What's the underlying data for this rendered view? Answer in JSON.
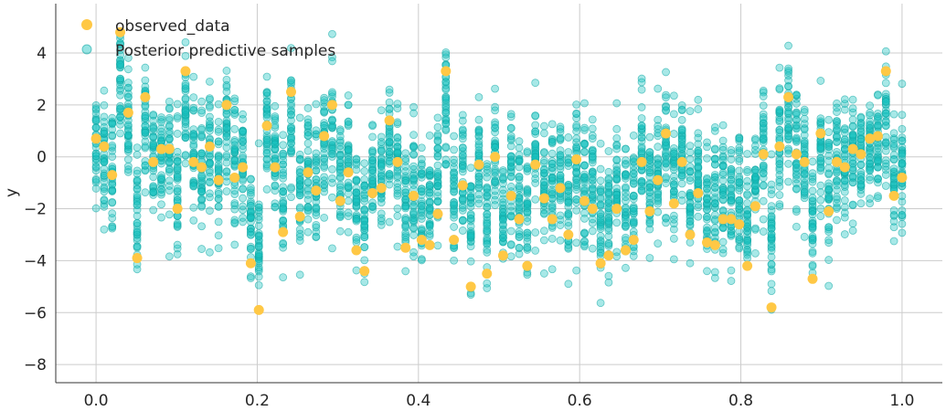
{
  "chart_data": {
    "type": "scatter",
    "title": "",
    "xlabel": "",
    "ylabel": "y",
    "xlim": [
      -0.05,
      1.05
    ],
    "ylim": [
      -8.7,
      5.9
    ],
    "x_ticks": [
      0.0,
      0.2,
      0.4,
      0.6,
      0.8,
      1.0
    ],
    "x_tick_labels": [
      "0.0",
      "0.2",
      "0.4",
      "0.6",
      "0.8",
      "1.0"
    ],
    "y_ticks": [
      4,
      2,
      0,
      -2,
      -4,
      -6,
      -8
    ],
    "y_tick_labels": [
      "4",
      "2",
      "0",
      "−2",
      "−4",
      "−6",
      "−8"
    ],
    "grid": true,
    "legend": {
      "position": "top-left",
      "entries": [
        {
          "label": "observed_data",
          "color": "#ffc845"
        },
        {
          "label": "Posterior predictive samples",
          "color": "#17c3c0"
        }
      ]
    },
    "colors": {
      "observed": "#ffc845",
      "posterior": "#17c3c0",
      "posterior_edge": "#12a8a5"
    },
    "posterior_samples_per_point": 36,
    "series": [
      {
        "name": "observed_data",
        "points": [
          [
            0.0,
            0.7
          ],
          [
            0.01,
            0.4
          ],
          [
            0.02,
            -0.7
          ],
          [
            0.03,
            4.8
          ],
          [
            0.04,
            1.7
          ],
          [
            0.051,
            -3.9
          ],
          [
            0.061,
            2.3
          ],
          [
            0.071,
            -0.2
          ],
          [
            0.081,
            0.3
          ],
          [
            0.091,
            0.3
          ],
          [
            0.101,
            -2.0
          ],
          [
            0.111,
            3.3
          ],
          [
            0.121,
            -0.2
          ],
          [
            0.131,
            -0.4
          ],
          [
            0.141,
            0.4
          ],
          [
            0.152,
            -0.9
          ],
          [
            0.162,
            2.0
          ],
          [
            0.172,
            -0.8
          ],
          [
            0.182,
            -0.4
          ],
          [
            0.192,
            -4.1
          ],
          [
            0.202,
            -5.9
          ],
          [
            0.212,
            1.2
          ],
          [
            0.222,
            -0.4
          ],
          [
            0.232,
            -2.9
          ],
          [
            0.242,
            2.5
          ],
          [
            0.253,
            -2.3
          ],
          [
            0.263,
            -0.6
          ],
          [
            0.273,
            -1.3
          ],
          [
            0.283,
            0.8
          ],
          [
            0.293,
            2.0
          ],
          [
            0.303,
            -1.7
          ],
          [
            0.313,
            -0.6
          ],
          [
            0.323,
            -3.6
          ],
          [
            0.333,
            -4.4
          ],
          [
            0.343,
            -1.4
          ],
          [
            0.354,
            -1.2
          ],
          [
            0.364,
            1.4
          ],
          [
            0.374,
            -0.2
          ],
          [
            0.384,
            -3.5
          ],
          [
            0.394,
            -1.5
          ],
          [
            0.404,
            -3.2
          ],
          [
            0.414,
            -3.4
          ],
          [
            0.424,
            -2.2
          ],
          [
            0.434,
            3.3
          ],
          [
            0.444,
            -3.2
          ],
          [
            0.455,
            -1.1
          ],
          [
            0.465,
            -5.0
          ],
          [
            0.475,
            -0.3
          ],
          [
            0.485,
            -4.5
          ],
          [
            0.495,
            0.0
          ],
          [
            0.505,
            -3.8
          ],
          [
            0.515,
            -1.5
          ],
          [
            0.525,
            -2.4
          ],
          [
            0.535,
            -4.2
          ],
          [
            0.545,
            -0.3
          ],
          [
            0.556,
            -1.6
          ],
          [
            0.566,
            -2.4
          ],
          [
            0.576,
            -1.2
          ],
          [
            0.586,
            -3.0
          ],
          [
            0.596,
            -0.1
          ],
          [
            0.606,
            -1.7
          ],
          [
            0.616,
            -2.0
          ],
          [
            0.626,
            -4.1
          ],
          [
            0.636,
            -3.8
          ],
          [
            0.646,
            -2.0
          ],
          [
            0.657,
            -3.6
          ],
          [
            0.667,
            -3.2
          ],
          [
            0.677,
            -0.2
          ],
          [
            0.687,
            -2.1
          ],
          [
            0.697,
            -0.9
          ],
          [
            0.707,
            0.9
          ],
          [
            0.717,
            -1.8
          ],
          [
            0.727,
            -0.2
          ],
          [
            0.737,
            -3.0
          ],
          [
            0.747,
            -1.4
          ],
          [
            0.758,
            -3.3
          ],
          [
            0.768,
            -3.4
          ],
          [
            0.778,
            -2.4
          ],
          [
            0.788,
            -2.4
          ],
          [
            0.798,
            -2.6
          ],
          [
            0.808,
            -4.2
          ],
          [
            0.818,
            -1.9
          ],
          [
            0.828,
            0.1
          ],
          [
            0.838,
            -5.8
          ],
          [
            0.848,
            0.4
          ],
          [
            0.859,
            2.3
          ],
          [
            0.869,
            0.1
          ],
          [
            0.879,
            -0.2
          ],
          [
            0.889,
            -4.7
          ],
          [
            0.899,
            0.9
          ],
          [
            0.909,
            -2.1
          ],
          [
            0.919,
            -0.2
          ],
          [
            0.929,
            -0.4
          ],
          [
            0.939,
            0.3
          ],
          [
            0.949,
            0.1
          ],
          [
            0.96,
            0.7
          ],
          [
            0.97,
            0.8
          ],
          [
            0.98,
            3.3
          ],
          [
            0.99,
            -1.5
          ],
          [
            1.0,
            -0.8
          ]
        ]
      }
    ]
  }
}
